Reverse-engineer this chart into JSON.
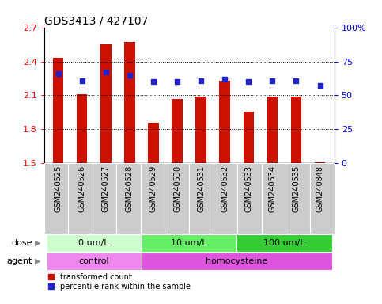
{
  "title": "GDS3413 / 427107",
  "samples": [
    "GSM240525",
    "GSM240526",
    "GSM240527",
    "GSM240528",
    "GSM240529",
    "GSM240530",
    "GSM240531",
    "GSM240532",
    "GSM240533",
    "GSM240534",
    "GSM240535",
    "GSM240848"
  ],
  "bar_values": [
    2.43,
    2.11,
    2.55,
    2.57,
    1.86,
    2.07,
    2.09,
    2.23,
    1.96,
    2.09,
    2.09,
    1.51
  ],
  "dot_values": [
    66,
    61,
    67,
    65,
    60,
    60,
    61,
    62,
    60,
    61,
    61,
    57
  ],
  "ylim": [
    1.5,
    2.7
  ],
  "yticks": [
    1.5,
    1.8,
    2.1,
    2.4,
    2.7
  ],
  "right_ylim": [
    0,
    100
  ],
  "right_yticks": [
    0,
    25,
    50,
    75,
    100
  ],
  "right_yticklabels": [
    "0",
    "25",
    "50",
    "75",
    "100%"
  ],
  "bar_color": "#cc1100",
  "dot_color": "#2222cc",
  "dose_groups": [
    {
      "label": "0 um/L",
      "start": 0,
      "end": 4,
      "color": "#ccffcc"
    },
    {
      "label": "10 um/L",
      "start": 4,
      "end": 8,
      "color": "#66ee66"
    },
    {
      "label": "100 um/L",
      "start": 8,
      "end": 12,
      "color": "#33cc33"
    }
  ],
  "agent_groups": [
    {
      "label": "control",
      "start": 0,
      "end": 4,
      "color": "#ee88ee"
    },
    {
      "label": "homocysteine",
      "start": 4,
      "end": 12,
      "color": "#dd55dd"
    }
  ],
  "legend_bar_label": "transformed count",
  "legend_dot_label": "percentile rank within the sample",
  "bg_color": "#ffffff",
  "plot_bg": "#ffffff",
  "tick_area_bg": "#cccccc",
  "bar_width": 0.45,
  "dot_size": 25,
  "title_fontsize": 10,
  "axis_fontsize": 8,
  "label_fontsize": 7,
  "grid_yticks": [
    1.8,
    2.1,
    2.4
  ]
}
